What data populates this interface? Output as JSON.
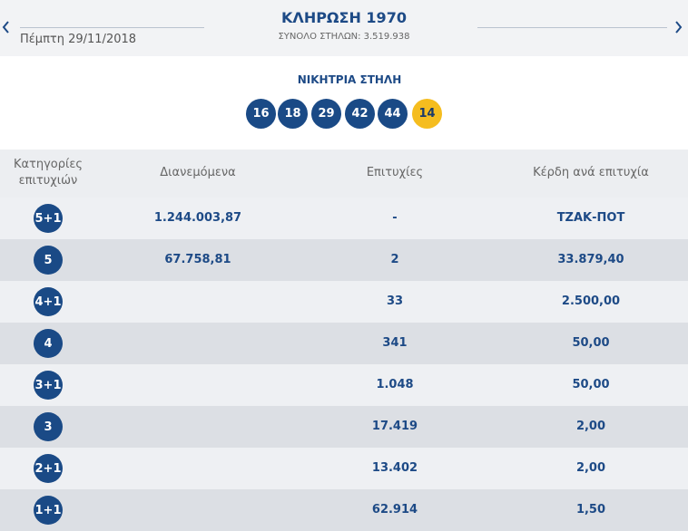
{
  "header": {
    "date": "Πέμπτη 29/11/2018",
    "title": "ΚΛΗΡΩΣΗ 1970",
    "subtitle": "ΣΥΝΟΛΟ ΣΤΗΛΩΝ: 3.519.938"
  },
  "winning": {
    "title": "ΝΙΚΗΤΡΙΑ ΣΤΗΛΗ",
    "numbers": [
      "16",
      "18",
      "29",
      "42",
      "44"
    ],
    "joker": "14"
  },
  "table": {
    "headers": [
      "Κατηγορίες επιτυχιών",
      "Διανεμόμενα",
      "Επιτυχίες",
      "Κέρδη ανά επιτυχία"
    ],
    "rows": [
      {
        "category": "5+1",
        "distributed": "1.244.003,87",
        "winners": "-",
        "prize": "ΤΖΑΚ-ΠΟΤ"
      },
      {
        "category": "5",
        "distributed": "67.758,81",
        "winners": "2",
        "prize": "33.879,40"
      },
      {
        "category": "4+1",
        "winners": "33",
        "prize": "2.500,00"
      },
      {
        "category": "4",
        "winners": "341",
        "prize": "50,00"
      },
      {
        "category": "3+1",
        "winners": "1.048",
        "prize": "50,00"
      },
      {
        "category": "3",
        "winners": "17.419",
        "prize": "2,00"
      },
      {
        "category": "2+1",
        "winners": "13.402",
        "prize": "2,00"
      },
      {
        "category": "1+1",
        "winners": "62.914",
        "prize": "1,50"
      }
    ]
  }
}
